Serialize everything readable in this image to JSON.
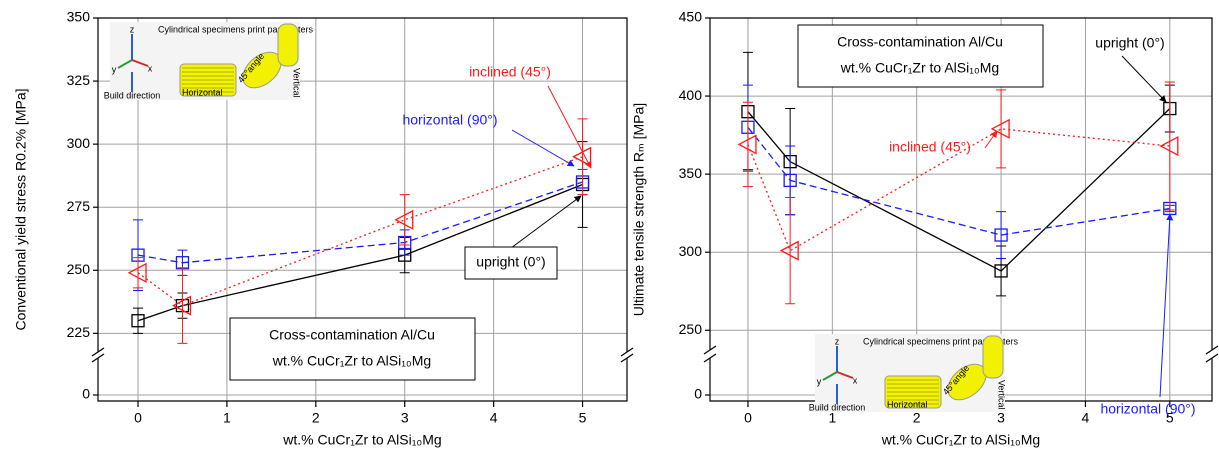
{
  "chart_data": [
    {
      "type": "scatter",
      "xlabel": "wt.% CuCr₁Zr to AlSi₁₀Mg",
      "ylabel": "Conventional yield stress R0.2% [MPa]",
      "x": [
        0,
        0.5,
        3,
        5
      ],
      "xlim": [
        -0.45,
        5.5
      ],
      "xticks": [
        0,
        1,
        2,
        3,
        4,
        5
      ],
      "ylim": [
        0,
        350
      ],
      "ybreak": [
        10,
        218
      ],
      "yticks": [
        0,
        225,
        250,
        275,
        300,
        325,
        350
      ],
      "grid": true,
      "series": [
        {
          "name": "upright (0°)",
          "color": "#000000",
          "line": "solid",
          "marker": "square",
          "values": [
            230,
            236,
            256,
            284
          ],
          "errors": [
            5,
            5,
            7,
            17
          ]
        },
        {
          "name": "horizontal (90°)",
          "color": "#1a1aff",
          "line": "dashed",
          "marker": "square",
          "values": [
            256,
            253,
            261,
            285
          ],
          "errors": [
            14,
            5,
            5,
            5
          ]
        },
        {
          "name": "inclined (45°)",
          "color": "#ff1a1a",
          "line": "dotted",
          "marker": "triangle",
          "values": [
            249,
            236,
            270,
            295
          ],
          "errors": [
            6,
            15,
            10,
            15
          ]
        }
      ],
      "textbox": [
        "Cross-contamination Al/Cu",
        "wt.% CuCr₁Zr to AlSi₁₀Mg"
      ],
      "inset": {
        "title": "Cylindrical specimens print parameters",
        "labels": [
          "Horizontal",
          "45°angle",
          "Vertical"
        ],
        "axes": [
          "z",
          "y",
          "x"
        ],
        "axis_label": "Build direction"
      }
    },
    {
      "type": "scatter",
      "xlabel": "wt.% CuCr₁Zr to AlSi₁₀Mg",
      "ylabel": "Ultimate tensile strength Rₘ [MPa]",
      "x": [
        0,
        0.5,
        3,
        5
      ],
      "xlim": [
        -0.45,
        5.5
      ],
      "xticks": [
        0,
        1,
        2,
        3,
        4,
        5
      ],
      "ylim": [
        0,
        450
      ],
      "ybreak": [
        10,
        238
      ],
      "yticks": [
        0,
        250,
        300,
        350,
        400,
        450
      ],
      "grid": true,
      "series": [
        {
          "name": "upright (0°)",
          "color": "#000000",
          "line": "solid",
          "marker": "square",
          "values": [
            390,
            358,
            288,
            392
          ],
          "errors": [
            38,
            34,
            16,
            15
          ]
        },
        {
          "name": "horizontal (90°)",
          "color": "#1a1aff",
          "line": "dashed",
          "marker": "square",
          "values": [
            380,
            346,
            311,
            328
          ],
          "errors": [
            27,
            22,
            15,
            2
          ]
        },
        {
          "name": "inclined (45°)",
          "color": "#ff1a1a",
          "line": "dotted",
          "marker": "triangle",
          "values": [
            369,
            301,
            379,
            368
          ],
          "errors": [
            27,
            34,
            25,
            41
          ]
        }
      ],
      "textbox": [
        "Cross-contamination Al/Cu",
        "wt.% CuCr₁Zr to AlSi₁₀Mg"
      ],
      "inset": {
        "title": "Cylindrical specimens print parameters",
        "labels": [
          "Horizontal",
          "45°angle",
          "Vertical"
        ],
        "axes": [
          "z",
          "y",
          "x"
        ],
        "axis_label": "Build direction"
      }
    }
  ]
}
